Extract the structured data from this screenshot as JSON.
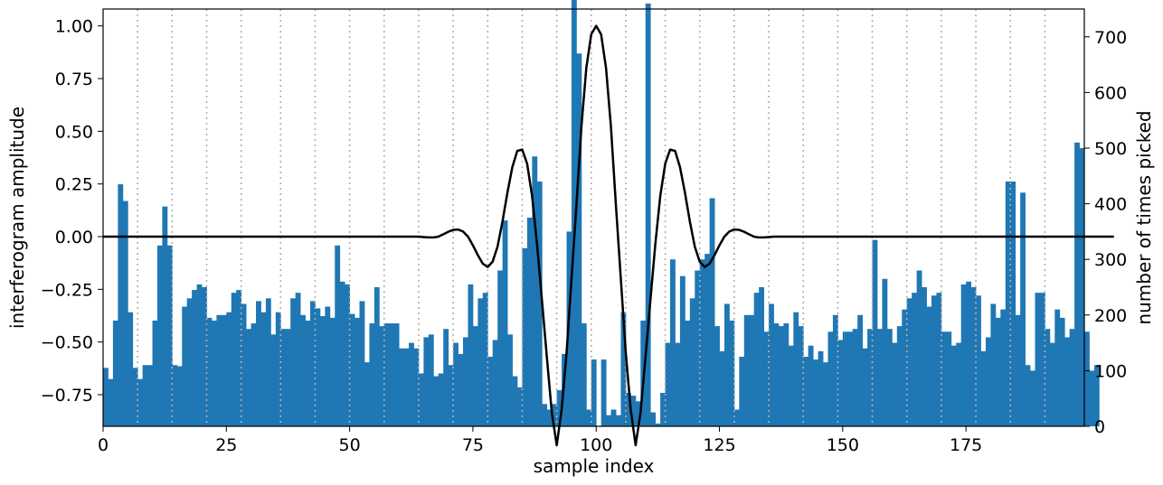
{
  "chart_data": {
    "type": "bar+line",
    "xlabel": "sample index",
    "ylabel_left": "interferogram amplitude",
    "ylabel_right": "number of times picked",
    "xlim": [
      0,
      199
    ],
    "ylim_left": [
      -0.9,
      1.08
    ],
    "ylim_right": [
      0,
      750
    ],
    "x_ticks": [
      0,
      25,
      50,
      75,
      100,
      125,
      150,
      175
    ],
    "y_left_ticks": [
      -0.75,
      -0.5,
      -0.25,
      0.0,
      0.25,
      0.5,
      0.75,
      1.0
    ],
    "y_left_tick_labels": [
      "−0.75",
      "−0.50",
      "−0.25",
      "0.00",
      "0.25",
      "0.50",
      "0.75",
      "1.00"
    ],
    "y_right_ticks": [
      0,
      100,
      200,
      300,
      400,
      500,
      600,
      700
    ],
    "vertical_grid_x": [
      7,
      14,
      21,
      28,
      36,
      43,
      50,
      57,
      64,
      71,
      78,
      85,
      92,
      99,
      106,
      114,
      121,
      128,
      135,
      142,
      149,
      156,
      163,
      170,
      177,
      184,
      191
    ],
    "grid_style": "dotted vertical lines",
    "bar_color": "#1f77b4",
    "line_color": "#000000",
    "series": [
      {
        "kind": "bar",
        "axis": "right",
        "values": [
          105,
          85,
          190,
          435,
          405,
          205,
          105,
          85,
          110,
          110,
          190,
          325,
          395,
          325,
          110,
          108,
          215,
          230,
          245,
          255,
          250,
          195,
          190,
          200,
          200,
          205,
          240,
          245,
          220,
          175,
          185,
          225,
          205,
          230,
          165,
          205,
          175,
          175,
          230,
          240,
          200,
          190,
          225,
          212,
          198,
          215,
          195,
          325,
          260,
          255,
          202,
          195,
          225,
          115,
          185,
          250,
          180,
          185,
          185,
          185,
          140,
          140,
          150,
          140,
          95,
          160,
          165,
          90,
          95,
          175,
          110,
          150,
          130,
          160,
          255,
          180,
          230,
          240,
          125,
          155,
          280,
          370,
          165,
          90,
          70,
          320,
          375,
          485,
          440,
          40,
          30,
          40,
          65,
          130,
          350,
          790,
          670,
          185,
          30,
          120,
          0,
          120,
          20,
          30,
          20,
          205,
          60,
          55,
          45,
          190,
          760,
          25,
          5,
          60,
          150,
          300,
          150,
          270,
          190,
          230,
          280,
          300,
          310,
          410,
          180,
          135,
          220,
          190,
          30,
          125,
          200,
          200,
          240,
          250,
          170,
          220,
          185,
          180,
          185,
          145,
          205,
          180,
          125,
          145,
          120,
          135,
          115,
          170,
          200,
          155,
          170,
          170,
          175,
          200,
          140,
          175,
          335,
          175,
          265,
          175,
          150,
          180,
          210,
          230,
          240,
          280,
          250,
          215,
          235,
          240,
          170,
          170,
          145,
          150,
          255,
          260,
          250,
          235,
          135,
          160,
          220,
          195,
          210,
          440,
          440,
          200,
          420,
          110,
          100,
          240,
          240,
          175,
          150,
          210,
          195,
          160,
          175,
          510,
          500,
          170,
          100,
          110
        ]
      },
      {
        "kind": "line",
        "axis": "left",
        "values": [
          0.0,
          0.0,
          0.0,
          0.0,
          0.0,
          0.0,
          0.0,
          0.0,
          0.0,
          0.0,
          0.0,
          0.0,
          0.0,
          0.0,
          0.0,
          0.0,
          0.0,
          0.0,
          0.0,
          0.0,
          0.0,
          0.0,
          0.0,
          0.0,
          0.0,
          0.0,
          0.0,
          0.0,
          0.0,
          0.0,
          0.0,
          0.0,
          0.0,
          0.0,
          0.0,
          0.0,
          0.0,
          0.0,
          0.0,
          0.0,
          0.0,
          0.0,
          0.0,
          0.0,
          0.0,
          0.0,
          0.0,
          0.0,
          0.0,
          0.0,
          0.0,
          0.0,
          0.0,
          0.0,
          0.0,
          0.0,
          0.0,
          0.0,
          0.0,
          0.0,
          0.0,
          0.0,
          0.0,
          0.0,
          0.0,
          -0.002,
          -0.004,
          -0.004,
          0.0,
          0.011,
          0.023,
          0.032,
          0.034,
          0.024,
          -0.0,
          -0.041,
          -0.088,
          -0.128,
          -0.144,
          -0.119,
          -0.047,
          0.072,
          0.209,
          0.33,
          0.407,
          0.413,
          0.346,
          0.193,
          -0.034,
          -0.301,
          -0.572,
          -0.835,
          -0.99,
          -0.82,
          -0.55,
          -0.2,
          0.15,
          0.52,
          0.8,
          0.96,
          1.0,
          0.96,
          0.8,
          0.52,
          0.15,
          -0.2,
          -0.55,
          -0.82,
          -0.99,
          -0.835,
          -0.572,
          -0.301,
          -0.034,
          0.193,
          0.346,
          0.413,
          0.407,
          0.33,
          0.209,
          0.072,
          -0.047,
          -0.119,
          -0.144,
          -0.128,
          -0.088,
          -0.041,
          -0.0,
          0.024,
          0.034,
          0.032,
          0.023,
          0.011,
          0.0,
          -0.004,
          -0.004,
          -0.002,
          0.0,
          0.0,
          0.0,
          0.0,
          0.0,
          0.0,
          0.0,
          0.0,
          0.0,
          0.0,
          0.0,
          0.0,
          0.0,
          0.0,
          0.0,
          0.0,
          0.0,
          0.0,
          0.0,
          0.0,
          0.0,
          0.0,
          0.0,
          0.0,
          0.0,
          0.0,
          0.0,
          0.0,
          0.0,
          0.0,
          0.0,
          0.0,
          0.0,
          0.0,
          0.0,
          0.0,
          0.0,
          0.0,
          0.0,
          0.0,
          0.0,
          0.0,
          0.0,
          0.0,
          0.0,
          0.0,
          0.0,
          0.0,
          0.0,
          0.0,
          0.0,
          0.0,
          0.0,
          0.0,
          0.0,
          0.0,
          0.0,
          0.0,
          0.0,
          0.0,
          0.0,
          0.0,
          0.0,
          0.0,
          0.0,
          0.0,
          0.0,
          0.0,
          0.0,
          0.0
        ]
      }
    ]
  }
}
